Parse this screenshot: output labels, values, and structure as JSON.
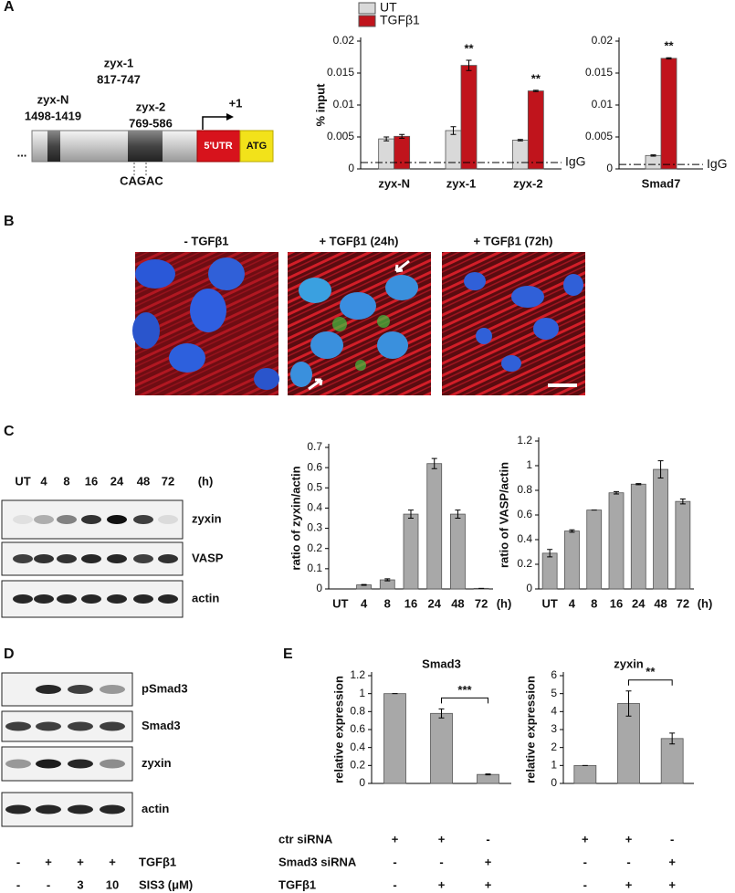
{
  "panel_labels": [
    "A",
    "B",
    "C",
    "D",
    "E"
  ],
  "promoter": {
    "regions": [
      {
        "name": "zyx-N",
        "range": "1498-1419"
      },
      {
        "name": "zyx-1",
        "range": "817-747"
      },
      {
        "name": "zyx-2",
        "range": "769-586"
      }
    ],
    "tss": "+1",
    "utr": "5'UTR",
    "start": "ATG",
    "ellipsis": "...",
    "motif": "CAGAC"
  },
  "microscopy": {
    "titles": [
      "- TGFβ1",
      "+ TGFβ1 (24h)",
      "+ TGFβ1 (72h)"
    ]
  },
  "blot_c": {
    "lanes": [
      "UT",
      "4",
      "8",
      "16",
      "24",
      "48",
      "72"
    ],
    "unit": "(h)",
    "rows": [
      "zyxin",
      "VASP",
      "actin"
    ]
  },
  "blot_d": {
    "rows": [
      "pSmad3",
      "Smad3",
      "zyxin",
      "actin"
    ],
    "conditions": [
      {
        "label": "TGFβ1",
        "values": [
          "-",
          "+",
          "+",
          "+"
        ]
      },
      {
        "label": "SIS3 (μM)",
        "values": [
          "-",
          "-",
          "3",
          "10"
        ]
      }
    ]
  },
  "treatment_e": {
    "rows": [
      {
        "label": "ctr siRNA",
        "values": [
          "+",
          "+",
          "-"
        ]
      },
      {
        "label": "Smad3 siRNA",
        "values": [
          "-",
          "-",
          "+"
        ]
      },
      {
        "label": "TGFβ1",
        "values": [
          "-",
          "+",
          "+"
        ]
      }
    ]
  },
  "chart_data": [
    {
      "type": "bar",
      "y_label": "% input",
      "legend": "top-left",
      "categories": [
        "zyx-N",
        "zyx-1",
        "zyx-2"
      ],
      "series": [
        {
          "name": "UT",
          "color": "#d9d9d9",
          "values": [
            0.0047,
            0.006,
            0.0045
          ],
          "errors": [
            0.0003,
            0.0006,
            0.0001
          ]
        },
        {
          "name": "TGFβ1",
          "color": "#c0141c",
          "values": [
            0.0051,
            0.0162,
            0.0122
          ],
          "errors": [
            0.0003,
            0.0008,
            0.0001
          ]
        }
      ],
      "significance": [
        null,
        "**",
        "**"
      ],
      "reference": {
        "label": "IgG",
        "value": 0.001
      },
      "ylim": [
        0,
        0.02
      ],
      "yticks": [
        0,
        0.005,
        0.01,
        0.015,
        0.02
      ],
      "grid": false
    },
    {
      "type": "bar",
      "categories": [
        "Smad7"
      ],
      "series": [
        {
          "color": "#d9d9d9",
          "values": [
            0.0021
          ],
          "errors": [
            0.0001
          ]
        },
        {
          "color": "#c0141c",
          "values": [
            0.0173
          ],
          "errors": [
            0.0001
          ]
        }
      ],
      "significance": [
        "**"
      ],
      "reference": {
        "label": "IgG",
        "value": 0.0007
      },
      "ylim": [
        0,
        0.02
      ],
      "yticks": [
        0,
        0.005,
        0.01,
        0.015,
        0.02
      ],
      "grid": false
    },
    {
      "type": "bar",
      "y_label": "ratio of zyxin/actin",
      "x_unit": "(h)",
      "categories": [
        "UT",
        "4",
        "8",
        "16",
        "24",
        "48",
        "72"
      ],
      "series": [
        {
          "color": "#a8a8a8",
          "values": [
            0,
            0.02,
            0.045,
            0.37,
            0.62,
            0.37,
            0.003
          ],
          "errors": [
            0,
            0.002,
            0.005,
            0.02,
            0.025,
            0.02,
            0
          ]
        }
      ],
      "ylim": [
        0,
        0.7
      ],
      "yticks": [
        0,
        0.1,
        0.2,
        0.3,
        0.4,
        0.5,
        0.6,
        0.7
      ],
      "grid": false
    },
    {
      "type": "bar",
      "y_label": "ratio of VASP/actin",
      "x_unit": "(h)",
      "categories": [
        "UT",
        "4",
        "8",
        "16",
        "24",
        "48",
        "72"
      ],
      "series": [
        {
          "color": "#a8a8a8",
          "values": [
            0.29,
            0.47,
            0.64,
            0.78,
            0.85,
            0.97,
            0.71
          ],
          "errors": [
            0.03,
            0.01,
            0,
            0.01,
            0.005,
            0.07,
            0.02
          ]
        }
      ],
      "ylim": [
        0,
        1.2
      ],
      "yticks": [
        0,
        0.2,
        0.4,
        0.6,
        0.8,
        1,
        1.2
      ],
      "grid": false
    },
    {
      "type": "bar",
      "title": "Smad3",
      "y_label": "relative expression",
      "categories": [
        null,
        null,
        null
      ],
      "series": [
        {
          "color": "#a8a8a8",
          "values": [
            1,
            0.78,
            0.1
          ],
          "errors": [
            0,
            0.05,
            0.005
          ]
        }
      ],
      "bracket": {
        "between": [
          1,
          2
        ],
        "text": "***"
      },
      "ylim": [
        0,
        1.2
      ],
      "yticks": [
        0,
        0.2,
        0.4,
        0.6,
        0.8,
        1,
        1.2
      ],
      "grid": false
    },
    {
      "type": "bar",
      "title": "zyxin",
      "y_label": "relative expression",
      "categories": [
        null,
        null,
        null
      ],
      "series": [
        {
          "color": "#a8a8a8",
          "values": [
            1,
            4.45,
            2.5
          ],
          "errors": [
            0,
            0.7,
            0.3
          ]
        }
      ],
      "bracket": {
        "between": [
          1,
          2
        ],
        "text": "**"
      },
      "ylim": [
        0,
        6
      ],
      "yticks": [
        0,
        1,
        2,
        3,
        4,
        5,
        6
      ],
      "grid": false
    }
  ]
}
